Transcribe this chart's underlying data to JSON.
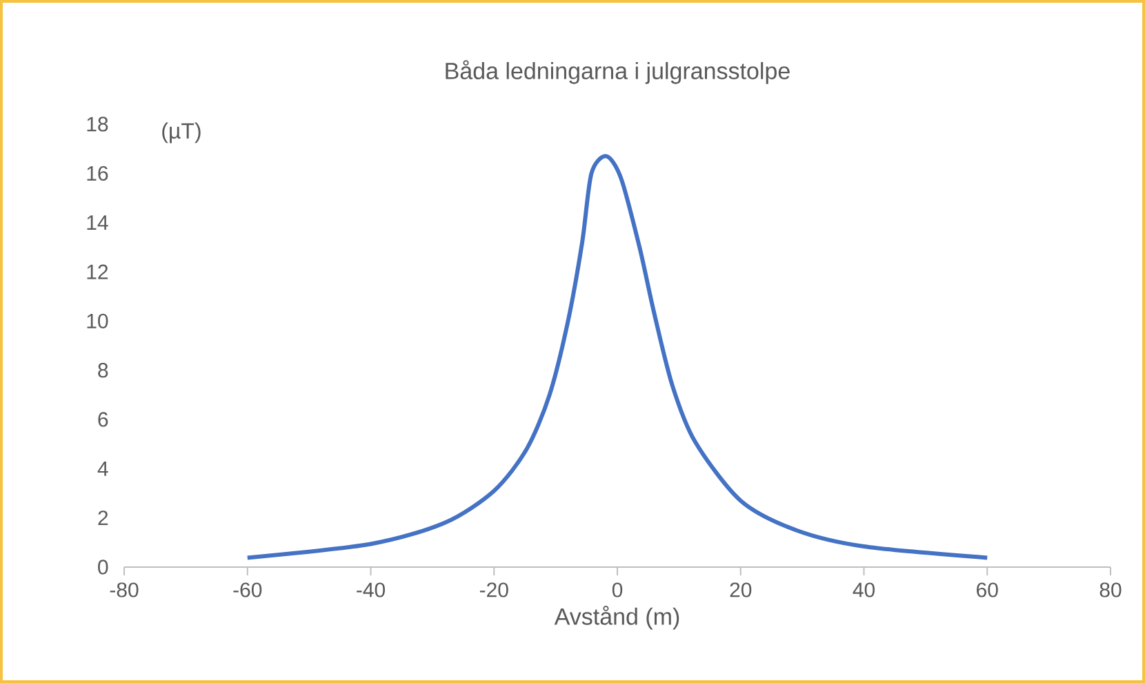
{
  "chart_data": {
    "type": "line",
    "title": "Båda ledningarna i julgransstolpe",
    "xlabel": "Avstånd (m)",
    "annotations": [
      "(µT)"
    ],
    "x": [
      -60,
      -40,
      -28,
      -20,
      -14.7,
      -11,
      -8,
      -5.7,
      -4.2,
      -1.8,
      0.6,
      3.6,
      5.9,
      8.9,
      12.6,
      20,
      29,
      40,
      60
    ],
    "series": [
      {
        "color": "#4472c4",
        "values": [
          0.38,
          0.94,
          1.8,
          3.1,
          4.8,
          7.0,
          10.0,
          13.2,
          16.0,
          16.7,
          15.8,
          13.0,
          10.4,
          7.4,
          5.1,
          2.7,
          1.5,
          0.84,
          0.38
        ]
      }
    ],
    "xlim": [
      -80,
      80
    ],
    "ylim": [
      0,
      18
    ],
    "xticks": [
      -80,
      -60,
      -40,
      -20,
      0,
      20,
      40,
      60,
      80
    ],
    "yticks": [
      0,
      2,
      4,
      6,
      8,
      10,
      12,
      14,
      16,
      18
    ]
  }
}
